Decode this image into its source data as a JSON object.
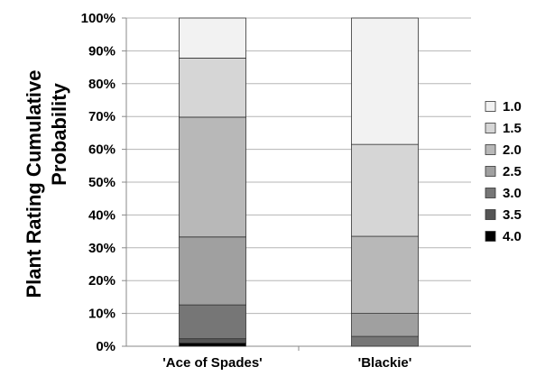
{
  "chart_data": {
    "type": "bar",
    "stacked": true,
    "normalized": true,
    "title": "",
    "xlabel": "",
    "ylabel_lines": [
      "Plant  Rating Cumulative",
      "Probability"
    ],
    "ylim": [
      0,
      100
    ],
    "y_ticks": [
      "0%",
      "10%",
      "20%",
      "30%",
      "40%",
      "50%",
      "60%",
      "70%",
      "80%",
      "90%",
      "100%"
    ],
    "categories": [
      "'Ace of Spades'",
      "'Blackie'"
    ],
    "grid": true,
    "legend_position": "right",
    "series": [
      {
        "name": "4.0",
        "color": "#000000",
        "values": [
          1.0,
          0.0
        ]
      },
      {
        "name": "3.5",
        "color": "#555555",
        "values": [
          1.3,
          0.0
        ]
      },
      {
        "name": "3.0",
        "color": "#767676",
        "values": [
          10.3,
          3.0
        ]
      },
      {
        "name": "2.5",
        "color": "#a0a0a0",
        "values": [
          20.7,
          7.0
        ]
      },
      {
        "name": "2.0",
        "color": "#b8b8b8",
        "values": [
          36.5,
          23.5
        ]
      },
      {
        "name": "1.5",
        "color": "#d6d6d6",
        "values": [
          18.0,
          28.0
        ]
      },
      {
        "name": "1.0",
        "color": "#f2f2f2",
        "values": [
          12.2,
          38.5
        ]
      }
    ]
  }
}
